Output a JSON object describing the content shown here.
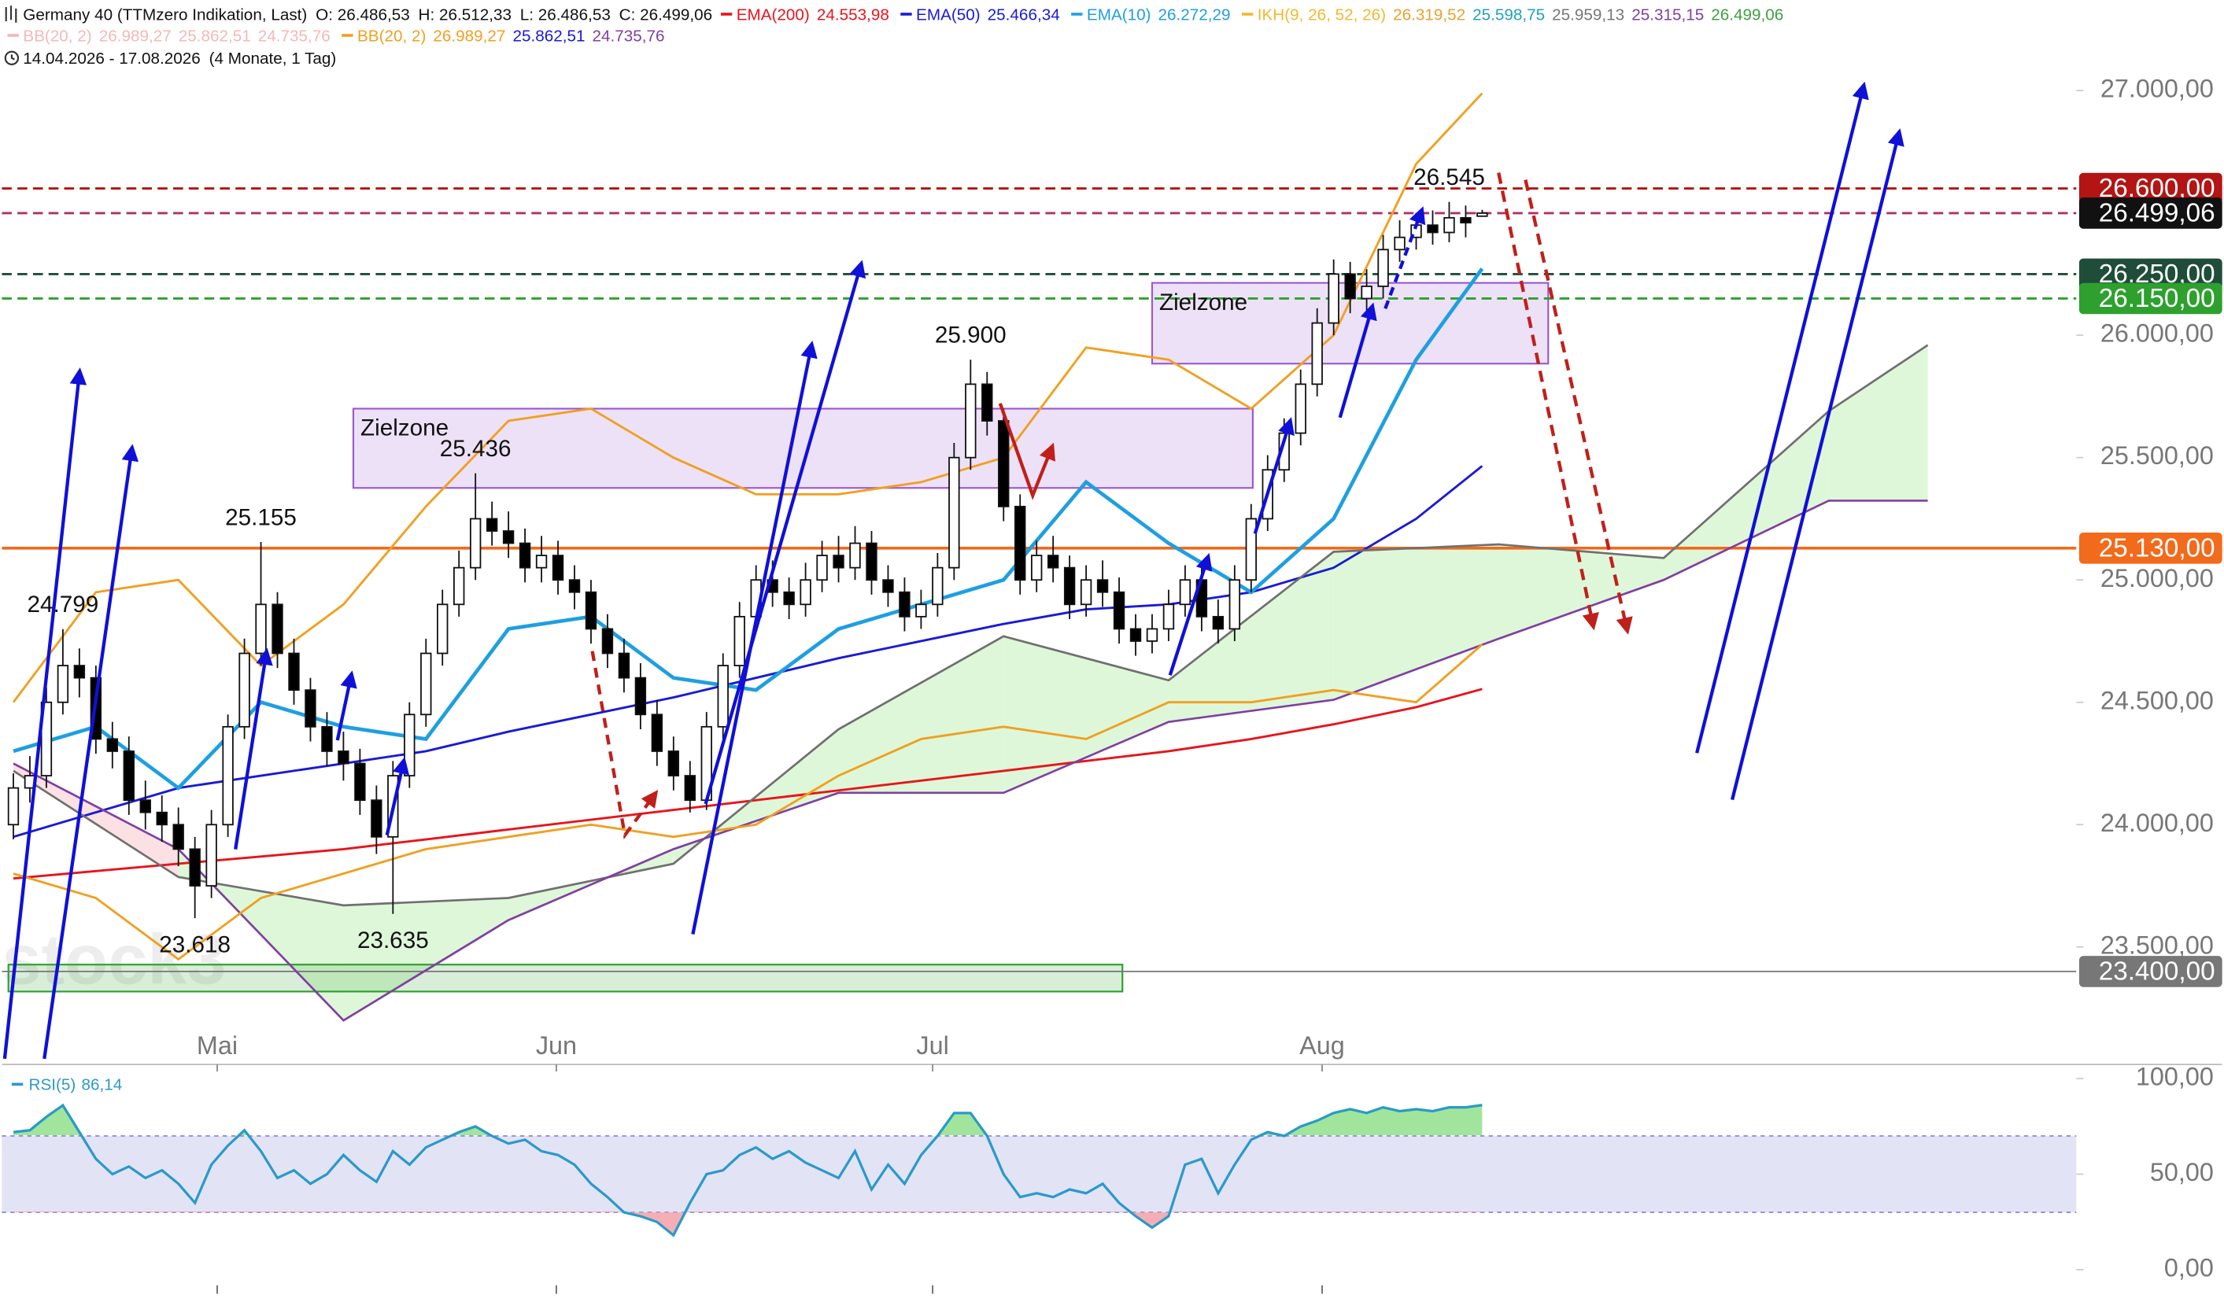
{
  "chart_data": {
    "type": "candlestick",
    "header": {
      "title": "Germany 40 (TTMzero Indikation, Last)",
      "ohlc": [
        "O: 26.486,53",
        "H: 26.512,33",
        "L: 26.486,53",
        "C: 26.499,06"
      ],
      "range": "14.04.2026 - 17.08.2026",
      "period": "(4 Monate, 1 Tag)"
    },
    "watermark": "stock3",
    "xlim": [
      -0.7,
      125
    ],
    "xticks": [
      {
        "value": 12.35,
        "label": "Mai"
      },
      {
        "value": 32.9,
        "label": "Jun"
      },
      {
        "value": 55.7,
        "label": "Jul"
      },
      {
        "value": 79.3,
        "label": "Aug"
      }
    ],
    "ylim": [
      23020,
      27370
    ],
    "yticks": [
      {
        "value": 27000,
        "label": "27.000,00"
      },
      {
        "value": 26000,
        "label": "26.000,00"
      },
      {
        "value": 25500,
        "label": "25.500,00"
      },
      {
        "value": 25000,
        "label": "25.000,00"
      },
      {
        "value": 24500,
        "label": "24.500,00"
      },
      {
        "value": 24000,
        "label": "24.000,00"
      },
      {
        "value": 23500,
        "label": "23.500,00"
      }
    ],
    "up_color": "#ffffff",
    "down_color": "#000000",
    "ohlc": [
      [
        24000,
        24210,
        23940,
        24150
      ],
      [
        24150,
        24280,
        24090,
        24200
      ],
      [
        24200,
        24560,
        24150,
        24500
      ],
      [
        24500,
        24799,
        24450,
        24650
      ],
      [
        24650,
        24720,
        24520,
        24600
      ],
      [
        24600,
        24650,
        24290,
        24350
      ],
      [
        24350,
        24420,
        24230,
        24300
      ],
      [
        24300,
        24360,
        24040,
        24100
      ],
      [
        24100,
        24180,
        23980,
        24050
      ],
      [
        24050,
        24120,
        23930,
        24000
      ],
      [
        24000,
        24070,
        23830,
        23900
      ],
      [
        23900,
        23950,
        23618,
        23750
      ],
      [
        23750,
        24060,
        23700,
        24000
      ],
      [
        24000,
        24450,
        23950,
        24400
      ],
      [
        24400,
        24760,
        24350,
        24700
      ],
      [
        24700,
        25155,
        24650,
        24900
      ],
      [
        24900,
        24950,
        24640,
        24700
      ],
      [
        24700,
        24760,
        24490,
        24550
      ],
      [
        24550,
        24600,
        24340,
        24400
      ],
      [
        24400,
        24460,
        24240,
        24300
      ],
      [
        24300,
        24380,
        24180,
        24250
      ],
      [
        24250,
        24310,
        24040,
        24100
      ],
      [
        24100,
        24160,
        23880,
        23950
      ],
      [
        23950,
        24260,
        23635,
        24200
      ],
      [
        24200,
        24500,
        24150,
        24450
      ],
      [
        24450,
        24760,
        24400,
        24700
      ],
      [
        24700,
        24960,
        24650,
        24900
      ],
      [
        24900,
        25120,
        24850,
        25050
      ],
      [
        25050,
        25436,
        25000,
        25250
      ],
      [
        25250,
        25320,
        25140,
        25200
      ],
      [
        25200,
        25280,
        25090,
        25150
      ],
      [
        25150,
        25210,
        24990,
        25050
      ],
      [
        25050,
        25180,
        24990,
        25100
      ],
      [
        25100,
        25160,
        24940,
        25000
      ],
      [
        25000,
        25060,
        24880,
        24950
      ],
      [
        24950,
        25000,
        24740,
        24800
      ],
      [
        24800,
        24860,
        24640,
        24700
      ],
      [
        24700,
        24760,
        24540,
        24600
      ],
      [
        24600,
        24660,
        24390,
        24450
      ],
      [
        24450,
        24510,
        24240,
        24300
      ],
      [
        24300,
        24360,
        24140,
        24200
      ],
      [
        24200,
        24260,
        24050,
        24100
      ],
      [
        24100,
        24460,
        24060,
        24400
      ],
      [
        24400,
        24700,
        24350,
        24650
      ],
      [
        24650,
        24910,
        24600,
        24850
      ],
      [
        24850,
        25060,
        24800,
        25000
      ],
      [
        25000,
        25080,
        24890,
        24950
      ],
      [
        24950,
        25010,
        24840,
        24900
      ],
      [
        24900,
        25070,
        24850,
        25000
      ],
      [
        25000,
        25160,
        24950,
        25100
      ],
      [
        25100,
        25180,
        24990,
        25050
      ],
      [
        25050,
        25220,
        25000,
        25150
      ],
      [
        25150,
        25200,
        24940,
        25000
      ],
      [
        25000,
        25060,
        24890,
        24950
      ],
      [
        24950,
        25010,
        24790,
        24850
      ],
      [
        24850,
        24960,
        24800,
        24900
      ],
      [
        24900,
        25110,
        24850,
        25050
      ],
      [
        25050,
        25560,
        25000,
        25500
      ],
      [
        25500,
        25900,
        25450,
        25800
      ],
      [
        25800,
        25850,
        25590,
        25650
      ],
      [
        25650,
        25700,
        25240,
        25300
      ],
      [
        25300,
        25350,
        24940,
        25000
      ],
      [
        25000,
        25160,
        24950,
        25100
      ],
      [
        25100,
        25180,
        24990,
        25050
      ],
      [
        25050,
        25100,
        24840,
        24900
      ],
      [
        24900,
        25060,
        24850,
        25000
      ],
      [
        25000,
        25080,
        24890,
        24950
      ],
      [
        24950,
        25010,
        24740,
        24800
      ],
      [
        24800,
        24860,
        24690,
        24750
      ],
      [
        24750,
        24860,
        24700,
        24800
      ],
      [
        24800,
        24960,
        24750,
        24900
      ],
      [
        24900,
        25060,
        24850,
        25000
      ],
      [
        25000,
        25050,
        24790,
        24850
      ],
      [
        24850,
        24920,
        24740,
        24800
      ],
      [
        24800,
        25060,
        24750,
        25000
      ],
      [
        25000,
        25310,
        24950,
        25250
      ],
      [
        25250,
        25510,
        25200,
        25450
      ],
      [
        25450,
        25660,
        25400,
        25600
      ],
      [
        25600,
        25860,
        25550,
        25800
      ],
      [
        25800,
        26110,
        25750,
        26050
      ],
      [
        26050,
        26310,
        26000,
        26250
      ],
      [
        26250,
        26300,
        26090,
        26150
      ],
      [
        26150,
        26270,
        26100,
        26200
      ],
      [
        26200,
        26410,
        26150,
        26350
      ],
      [
        26350,
        26470,
        26300,
        26400
      ],
      [
        26400,
        26500,
        26350,
        26450
      ],
      [
        26450,
        26510,
        26370,
        26420
      ],
      [
        26420,
        26545,
        26380,
        26480
      ],
      [
        26480,
        26530,
        26400,
        26460
      ],
      [
        26486.53,
        26512.33,
        26486.53,
        26499.06
      ]
    ],
    "lines": [
      {
        "name": "EMA(200)",
        "color": "#e8141b",
        "legend_labels": [
          "24.553,98"
        ],
        "legend_colors": [
          "#e8141b"
        ],
        "x": [
          0,
          5,
          10,
          15,
          20,
          25,
          30,
          35,
          40,
          45,
          50,
          55,
          60,
          65,
          70,
          75,
          80,
          85,
          89
        ],
        "values": [
          23780,
          23810,
          23840,
          23870,
          23900,
          23940,
          23980,
          24020,
          24060,
          24100,
          24140,
          24180,
          24220,
          24260,
          24300,
          24350,
          24410,
          24480,
          24554
        ]
      },
      {
        "name": "EMA(50)",
        "color": "#1a1ad6",
        "legend_labels": [
          "25.466,34"
        ],
        "legend_colors": [
          "#1a1ad6"
        ],
        "x": [
          0,
          5,
          10,
          15,
          20,
          25,
          30,
          35,
          40,
          45,
          50,
          55,
          60,
          65,
          70,
          75,
          80,
          85,
          89
        ],
        "values": [
          23950,
          24050,
          24150,
          24200,
          24250,
          24300,
          24380,
          24450,
          24520,
          24600,
          24680,
          24750,
          24820,
          24880,
          24900,
          24950,
          25050,
          25250,
          25466
        ]
      },
      {
        "name": "EMA(10)",
        "color": "#1e9fe0",
        "legend_labels": [
          "26.272,29"
        ],
        "legend_colors": [
          "#1e9fe0"
        ],
        "x": [
          0,
          5,
          10,
          15,
          20,
          25,
          30,
          35,
          40,
          45,
          50,
          55,
          60,
          65,
          70,
          75,
          80,
          85,
          89
        ],
        "values": [
          24300,
          24400,
          24150,
          24500,
          24400,
          24350,
          24800,
          24850,
          24600,
          24550,
          24800,
          24900,
          25000,
          25400,
          25150,
          24950,
          25250,
          25900,
          26272
        ]
      },
      {
        "name": "IKH(9, 26, 52, 26)",
        "color": "#f2b830",
        "legend_labels": [
          "26.319,52",
          "25.598,75",
          "25.959,13",
          "25.315,15",
          "26.499,06"
        ],
        "legend_colors": [
          "#e8a030",
          "#20a0c0",
          "#777777",
          "#8040a0",
          "#40a040"
        ],
        "span_a_color": "#707070",
        "span_b_color": "#8040a0",
        "x": [
          0,
          10,
          20,
          30,
          40,
          50,
          60,
          70,
          80,
          90,
          100,
          110,
          116
        ],
        "span_a": [
          24220,
          23786,
          23670,
          23700,
          23840,
          24390,
          24770,
          24590,
          25115,
          25145,
          25090,
          25690,
          25960
        ],
        "span_b": [
          24250,
          23900,
          23200,
          23610,
          23900,
          24130,
          24130,
          24420,
          24510,
          24760,
          25000,
          25324,
          25324
        ]
      },
      {
        "name": "BB(20, 2)",
        "color": "#f0a020",
        "legend_labels": [
          "26.989,27",
          "25.862,51",
          "24.735,76"
        ],
        "legend_colors": [
          "#f0a020",
          "#1a1ad6",
          "#8040a0"
        ],
        "x": [
          0,
          5,
          10,
          15,
          20,
          25,
          30,
          35,
          40,
          45,
          50,
          55,
          60,
          65,
          70,
          75,
          80,
          85,
          89
        ],
        "values": [
          24500,
          24950,
          25000,
          24650,
          24900,
          25300,
          25650,
          25700,
          25500,
          25350,
          25350,
          25400,
          25500,
          25950,
          25900,
          25700,
          26000,
          26700,
          26989
        ],
        "lower": [
          23800,
          23700,
          23450,
          23700,
          23800,
          23900,
          23950,
          24000,
          23950,
          24000,
          24200,
          24350,
          24400,
          24350,
          24500,
          24500,
          24550,
          24500,
          24736
        ]
      }
    ],
    "hidden_indicator": {
      "name": "BB(20, 2)",
      "color": "#f4b8b8",
      "legend_labels": [
        "26.989,27",
        "25.862,51",
        "24.735,76"
      ]
    },
    "levels": [
      {
        "value": 26600,
        "label": "26.600,00",
        "color": "#b31414",
        "dash": true
      },
      {
        "value": 26250,
        "label": "26.250,00",
        "color": "#1f4d3a",
        "dash": true
      },
      {
        "value": 26150,
        "label": "26.150,00",
        "color": "#2ea02e",
        "dash": true
      },
      {
        "value": 26499.06,
        "label": "26.499,06",
        "color": "#111111",
        "line_color": "#b0306a",
        "dash": true
      },
      {
        "value": 25130,
        "label": "25.130,00",
        "color": "#f26a1b",
        "dash": false
      },
      {
        "value": 23400,
        "label": "23.400,00",
        "color": "#777777",
        "dash": false
      }
    ],
    "zones": [
      {
        "label": "Zielzone",
        "x": [
          20.6,
          75.1
        ],
        "y": [
          25376,
          25700
        ],
        "color": "#9b59d0"
      },
      {
        "label": "Zielzone",
        "x": [
          69,
          93
        ],
        "y": [
          25884,
          26214
        ],
        "color": "#9b59d0"
      },
      {
        "x": [
          -0.3,
          67.2
        ],
        "y": [
          23318,
          23428
        ],
        "color": "#2ea02e"
      }
    ],
    "annotations": [
      {
        "label": "24.799",
        "index": 3,
        "value": 24799,
        "side": "above"
      },
      {
        "label": "23.618",
        "index": 11,
        "value": 23618,
        "side": "below"
      },
      {
        "label": "25.155",
        "index": 15,
        "value": 25155,
        "side": "above"
      },
      {
        "label": "23.635",
        "index": 23,
        "value": 23635,
        "side": "below"
      },
      {
        "label": "25.436",
        "index": 28,
        "value": 25436,
        "side": "above"
      },
      {
        "label": "25.900",
        "index": 58,
        "value": 25900,
        "side": "above"
      },
      {
        "label": "26.545",
        "index": 87,
        "value": 26545,
        "side": "above"
      }
    ],
    "rsi": {
      "name": "RSI(5)",
      "label": "86,14",
      "color": "#2a9ac8",
      "ylim": [
        0,
        100
      ],
      "yticks": [
        {
          "value": 100,
          "label": "100,00"
        },
        {
          "value": 50,
          "label": "50,00"
        },
        {
          "value": 0,
          "label": "0,00"
        }
      ],
      "band": [
        30,
        70
      ],
      "values": [
        72,
        73,
        80,
        86,
        72,
        58,
        50,
        54,
        48,
        52,
        45,
        35,
        55,
        65,
        73,
        62,
        48,
        52,
        45,
        50,
        60,
        52,
        46,
        62,
        55,
        64,
        68,
        72,
        75,
        70,
        66,
        68,
        62,
        60,
        55,
        45,
        38,
        30,
        28,
        25,
        18,
        35,
        50,
        52,
        60,
        64,
        58,
        62,
        56,
        52,
        48,
        62,
        42,
        55,
        45,
        60,
        70,
        82,
        82,
        70,
        50,
        38,
        40,
        38,
        42,
        40,
        45,
        35,
        28,
        22,
        28,
        55,
        58,
        40,
        55,
        68,
        72,
        70,
        75,
        78,
        82,
        84,
        82,
        85,
        83,
        84,
        83,
        85,
        85,
        86.14
      ]
    }
  }
}
